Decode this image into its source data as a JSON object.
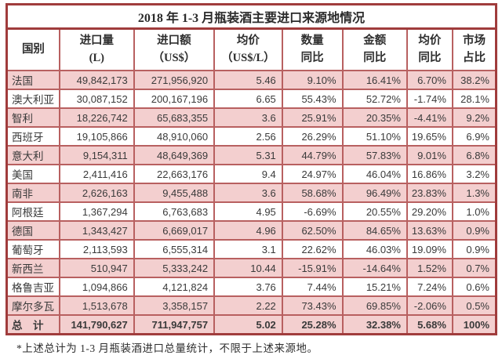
{
  "title": "2018 年 1-3 月瓶装酒主要进口来源地情况",
  "columns": [
    {
      "line1": "国别",
      "line2": ""
    },
    {
      "line1": "进口量",
      "line2": "(L)"
    },
    {
      "line1": "进口额",
      "line2": "（US$）"
    },
    {
      "line1": "均价",
      "line2": "（US$/L）"
    },
    {
      "line1": "数量",
      "line2": "同比"
    },
    {
      "line1": "金额",
      "line2": "同比"
    },
    {
      "line1": "均价",
      "line2": "同比"
    },
    {
      "line1": "市场",
      "line2": "占比"
    }
  ],
  "rows": [
    [
      "法国",
      "49,842,173",
      "271,956,920",
      "5.46",
      "9.10%",
      "16.41%",
      "6.70%",
      "38.2%"
    ],
    [
      "澳大利亚",
      "30,087,152",
      "200,167,196",
      "6.65",
      "55.43%",
      "52.72%",
      "-1.74%",
      "28.1%"
    ],
    [
      "智利",
      "18,226,742",
      "65,683,355",
      "3.6",
      "25.91%",
      "20.35%",
      "-4.41%",
      "9.2%"
    ],
    [
      "西班牙",
      "19,105,866",
      "48,910,060",
      "2.56",
      "26.29%",
      "51.10%",
      "19.65%",
      "6.9%"
    ],
    [
      "意大利",
      "9,154,311",
      "48,649,369",
      "5.31",
      "44.79%",
      "57.83%",
      "9.01%",
      "6.8%"
    ],
    [
      "美国",
      "2,411,416",
      "22,663,176",
      "9.4",
      "24.97%",
      "46.04%",
      "16.86%",
      "3.2%"
    ],
    [
      "南非",
      "2,626,163",
      "9,455,488",
      "3.6",
      "58.68%",
      "96.49%",
      "23.83%",
      "1.3%"
    ],
    [
      "阿根廷",
      "1,367,294",
      "6,763,683",
      "4.95",
      "-6.69%",
      "20.55%",
      "29.20%",
      "1.0%"
    ],
    [
      "德国",
      "1,343,427",
      "6,669,017",
      "4.96",
      "62.50%",
      "84.65%",
      "13.63%",
      "0.9%"
    ],
    [
      "葡萄牙",
      "2,113,593",
      "6,555,314",
      "3.1",
      "22.62%",
      "46.03%",
      "19.09%",
      "0.9%"
    ],
    [
      "新西兰",
      "510,947",
      "5,333,242",
      "10.44",
      "-15.91%",
      "-14.64%",
      "1.52%",
      "0.7%"
    ],
    [
      "格鲁吉亚",
      "1,094,866",
      "4,121,824",
      "3.76",
      "7.44%",
      "15.21%",
      "7.24%",
      "0.6%"
    ],
    [
      "摩尔多瓦",
      "1,513,678",
      "3,358,157",
      "2.22",
      "73.43%",
      "69.85%",
      "-2.06%",
      "0.5%"
    ]
  ],
  "total_row": [
    "总　计",
    "141,790,627",
    "711,947,757",
    "5.02",
    "25.28%",
    "32.38%",
    "5.68%",
    "100%"
  ],
  "footnote": "*上述总计为 1-3 月瓶装酒进口总量统计，不限于上述来源地。",
  "colors": {
    "frame": "#a03c3c",
    "border": "#b86060",
    "pink": "#f3cfcf",
    "text": "#3a3a3a"
  },
  "column_widths_pct": [
    10.8,
    15.2,
    16.4,
    13.9,
    12.3,
    13.2,
    9.3,
    8.9
  ]
}
